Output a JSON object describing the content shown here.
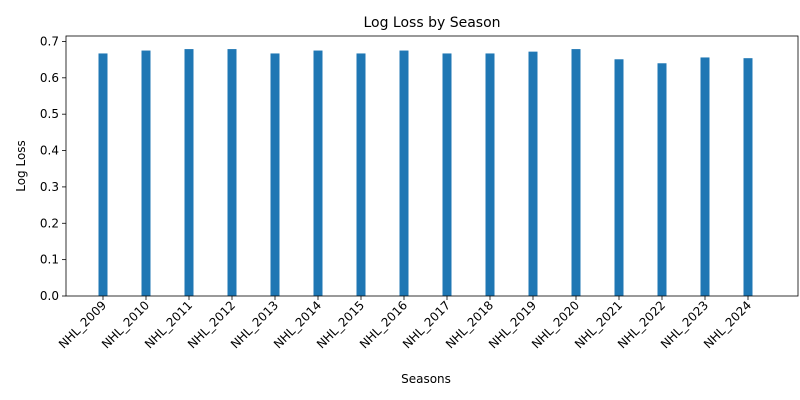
{
  "chart_data": {
    "type": "bar",
    "title": "Log Loss by Season",
    "xlabel": "Seasons",
    "ylabel": "Log Loss",
    "categories": [
      "NHL_2009",
      "NHL_2010",
      "NHL_2011",
      "NHL_2012",
      "NHL_2013",
      "NHL_2014",
      "NHL_2015",
      "NHL_2016",
      "NHL_2017",
      "NHL_2018",
      "NHL_2019",
      "NHL_2020",
      "NHL_2021",
      "NHL_2022",
      "NHL_2023",
      "NHL_2024"
    ],
    "values": [
      0.667,
      0.675,
      0.679,
      0.679,
      0.667,
      0.675,
      0.667,
      0.675,
      0.667,
      0.667,
      0.672,
      0.679,
      0.651,
      0.64,
      0.656,
      0.654
    ],
    "ylim": [
      0,
      0.715
    ],
    "yticks": [
      "0.0",
      "0.1",
      "0.2",
      "0.3",
      "0.4",
      "0.5",
      "0.6",
      "0.7"
    ],
    "grid": false,
    "bar_color": "#1f77b4"
  }
}
